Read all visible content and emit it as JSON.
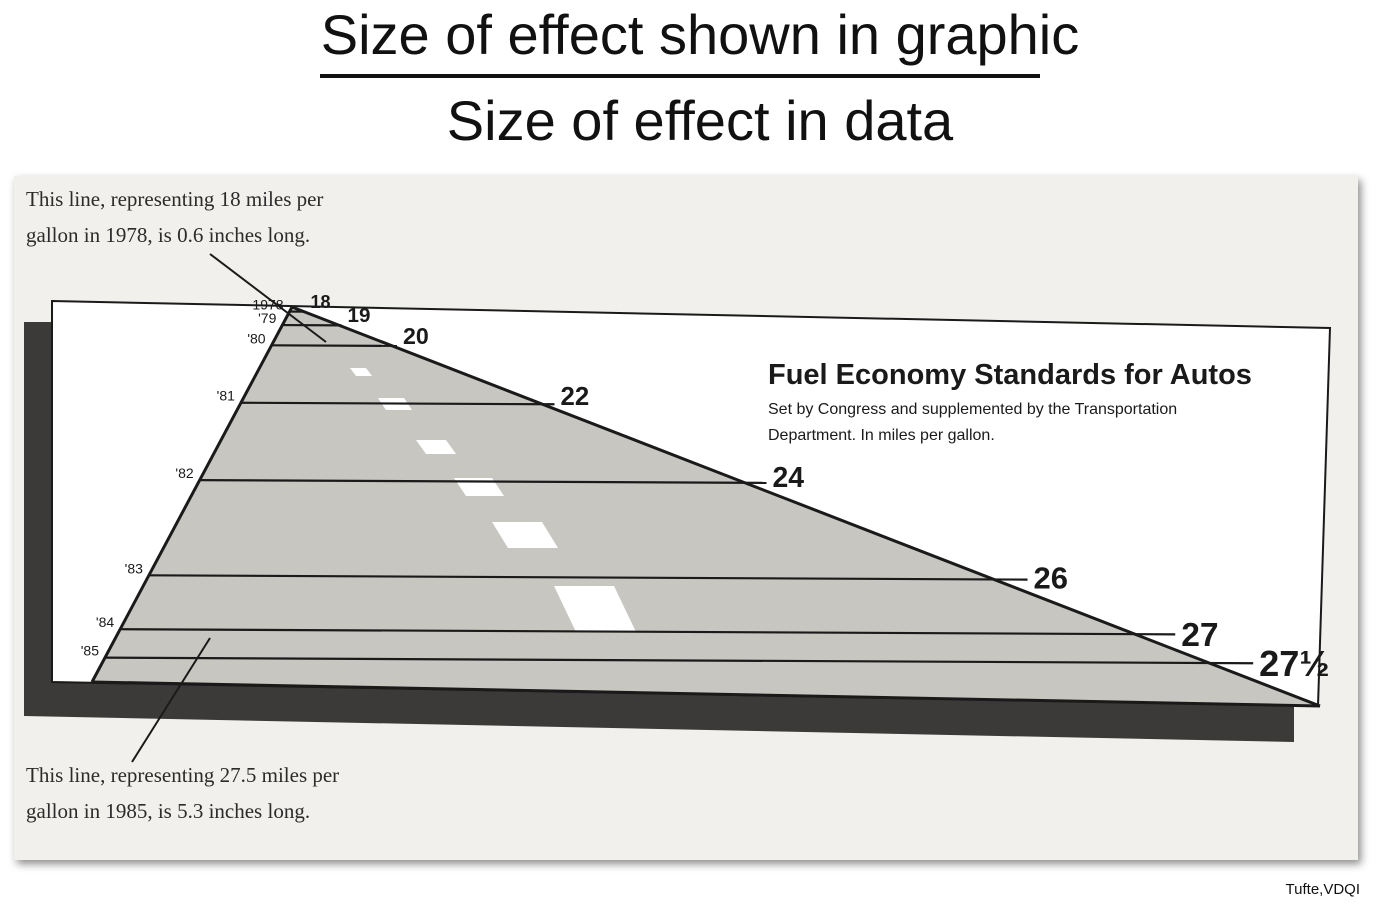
{
  "formula": {
    "numerator": "Size of effect shown in graphic",
    "denominator": "Size of effect in data"
  },
  "credit": "Tufte,VDQI",
  "colors": {
    "road": "#c7c6c0",
    "shadow": "#3c3a38",
    "line": "#1a1a1a",
    "dash": "#ffffff"
  },
  "chart_data": {
    "type": "area",
    "title": "Fuel Economy Standards for Autos",
    "subtitle_line1": "Set by Congress and supplemented by the Transportation",
    "subtitle_line2": "Department. In miles per gallon.",
    "years": [
      "1978",
      "'79",
      "'80",
      "'81",
      "'82",
      "'83",
      "'84",
      "'85"
    ],
    "mpg": [
      18,
      19,
      20,
      22,
      24,
      26,
      27,
      27.5
    ],
    "mpg_labels": [
      "18",
      "19",
      "20",
      "22",
      "24",
      "26",
      "27",
      "27½"
    ],
    "annotations": {
      "top_line1": "This line, representing 18 miles per",
      "top_line2": "gallon in 1978, is 0.6 inches long.",
      "bottom_line1": "This line, representing 27.5 miles per",
      "bottom_line2": "gallon in 1985, is 5.3 inches long."
    }
  }
}
